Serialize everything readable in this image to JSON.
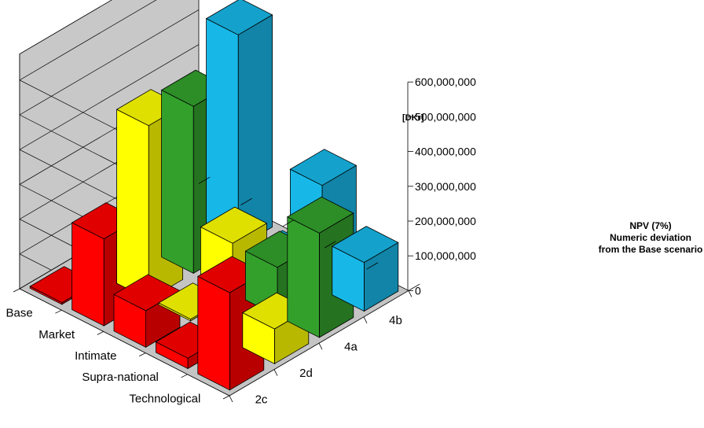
{
  "chart_data": {
    "type": "bar",
    "variant": "3d-column",
    "unit_label": "[DKr]",
    "z_ticks": [
      "0",
      "100,000,000",
      "200,000,000",
      "300,000,000",
      "400,000,000",
      "500,000,000",
      "600,000,000"
    ],
    "zlim": [
      0,
      600000000
    ],
    "scenarios": [
      "Base",
      "Market",
      "Intimate",
      "Supra-national",
      "Technological"
    ],
    "series": [
      {
        "name": "2c",
        "color": "#ff0000",
        "values": [
          0,
          250000000,
          105000000,
          30000000,
          280000000
        ]
      },
      {
        "name": "2d",
        "color": "#ffff00",
        "values": [
          0,
          500000000,
          0,
          285000000,
          100000000
        ]
      },
      {
        "name": "4a",
        "color": "#33a02c",
        "values": [
          0,
          480000000,
          0,
          140000000,
          300000000
        ]
      },
      {
        "name": "4b",
        "color": "#17b8e8",
        "values": [
          0,
          610000000,
          0,
          300000000,
          140000000
        ]
      }
    ],
    "legend": {
      "title": "NPV (7%)",
      "lines": [
        "Numeric deviation",
        "from the Base scenario"
      ]
    },
    "grid": true
  }
}
